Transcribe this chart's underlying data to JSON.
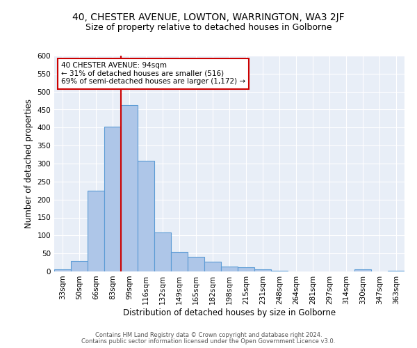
{
  "title1": "40, CHESTER AVENUE, LOWTON, WARRINGTON, WA3 2JF",
  "title2": "Size of property relative to detached houses in Golborne",
  "xlabel": "Distribution of detached houses by size in Golborne",
  "ylabel": "Number of detached properties",
  "categories": [
    "33sqm",
    "50sqm",
    "66sqm",
    "83sqm",
    "99sqm",
    "116sqm",
    "132sqm",
    "149sqm",
    "165sqm",
    "182sqm",
    "198sqm",
    "215sqm",
    "231sqm",
    "248sqm",
    "264sqm",
    "281sqm",
    "297sqm",
    "314sqm",
    "330sqm",
    "347sqm",
    "363sqm"
  ],
  "values": [
    5,
    30,
    225,
    403,
    462,
    307,
    108,
    55,
    40,
    27,
    13,
    11,
    5,
    2,
    0,
    0,
    0,
    0,
    5,
    0,
    2
  ],
  "bar_color": "#aec6e8",
  "bar_edge_color": "#5b9bd5",
  "vline_color": "#cc0000",
  "annotation_text": "40 CHESTER AVENUE: 94sqm\n← 31% of detached houses are smaller (516)\n69% of semi-detached houses are larger (1,172) →",
  "annotation_box_color": "#ffffff",
  "annotation_box_edge_color": "#cc0000",
  "ylim": [
    0,
    600
  ],
  "yticks": [
    0,
    50,
    100,
    150,
    200,
    250,
    300,
    350,
    400,
    450,
    500,
    550,
    600
  ],
  "background_color": "#e8eef7",
  "footer1": "Contains HM Land Registry data © Crown copyright and database right 2024.",
  "footer2": "Contains public sector information licensed under the Open Government Licence v3.0.",
  "title1_fontsize": 10,
  "title2_fontsize": 9,
  "tick_fontsize": 7.5,
  "label_fontsize": 8.5
}
